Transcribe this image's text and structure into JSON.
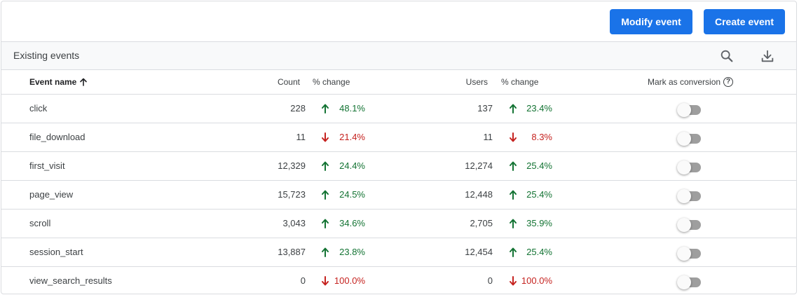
{
  "header": {
    "modify_label": "Modify event",
    "create_label": "Create event"
  },
  "section": {
    "title": "Existing events",
    "icons": [
      "search-icon",
      "download-icon"
    ]
  },
  "columns": {
    "name": "Event name",
    "count": "Count",
    "count_change": "% change",
    "users": "Users",
    "users_change": "% change",
    "conversion": "Mark as conversion",
    "help": "?"
  },
  "colors": {
    "accent": "#1a73e8",
    "up": "#137333",
    "down": "#c5221f"
  },
  "rows": [
    {
      "name": "click",
      "count": "228",
      "count_dir": "up",
      "count_change": "48.1%",
      "users": "137",
      "users_dir": "up",
      "users_change": "23.4%",
      "conversion": false
    },
    {
      "name": "file_download",
      "count": "11",
      "count_dir": "down",
      "count_change": "21.4%",
      "users": "11",
      "users_dir": "down",
      "users_change": "8.3%",
      "conversion": false
    },
    {
      "name": "first_visit",
      "count": "12,329",
      "count_dir": "up",
      "count_change": "24.4%",
      "users": "12,274",
      "users_dir": "up",
      "users_change": "25.4%",
      "conversion": false
    },
    {
      "name": "page_view",
      "count": "15,723",
      "count_dir": "up",
      "count_change": "24.5%",
      "users": "12,448",
      "users_dir": "up",
      "users_change": "25.4%",
      "conversion": false
    },
    {
      "name": "scroll",
      "count": "3,043",
      "count_dir": "up",
      "count_change": "34.6%",
      "users": "2,705",
      "users_dir": "up",
      "users_change": "35.9%",
      "conversion": false
    },
    {
      "name": "session_start",
      "count": "13,887",
      "count_dir": "up",
      "count_change": "23.8%",
      "users": "12,454",
      "users_dir": "up",
      "users_change": "25.4%",
      "conversion": false
    },
    {
      "name": "view_search_results",
      "count": "0",
      "count_dir": "down",
      "count_change": "100.0%",
      "users": "0",
      "users_dir": "down",
      "users_change": "100.0%",
      "conversion": false
    }
  ]
}
